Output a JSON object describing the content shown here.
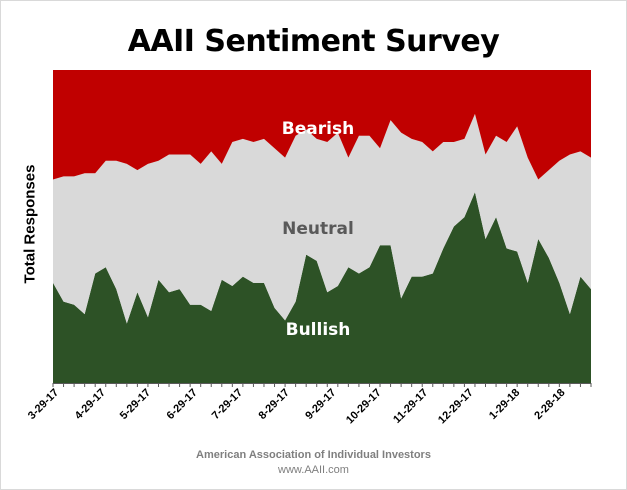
{
  "page": {
    "title": "AAII Sentiment Survey",
    "footer_org": "American Association of Individual Investors",
    "footer_url": "www.AAII.com"
  },
  "chart_data": {
    "type": "area",
    "stacked": true,
    "percent_stacked": true,
    "title": "AAII Sentiment Survey",
    "xlabel": "",
    "ylabel": "Total Responses",
    "ylim": [
      0,
      100
    ],
    "grid": false,
    "legend": "none",
    "x_tick_labels": [
      "3-29-17",
      "4-29-17",
      "5-29-17",
      "6-29-17",
      "7-29-17",
      "8-29-17",
      "9-29-17",
      "10-29-17",
      "11-29-17",
      "12-29-17",
      "1-29-18",
      "2-28-18"
    ],
    "x_tick_positions": [
      0,
      4.43,
      8.71,
      13.14,
      17.43,
      21.86,
      26.29,
      30.57,
      35.0,
      39.29,
      43.71,
      48.0
    ],
    "series": [
      {
        "name": "Bullish",
        "color": "#2d5226",
        "values": [
          32,
          26,
          25,
          22,
          35,
          37,
          30,
          19,
          29,
          21,
          33,
          29,
          30,
          25,
          25,
          23,
          33,
          31,
          34,
          32,
          32,
          24,
          20,
          26,
          41,
          39,
          29,
          31,
          37,
          35,
          37,
          44,
          44,
          27,
          34,
          34,
          35,
          43,
          50,
          53,
          61,
          46,
          53,
          43,
          42,
          32,
          46,
          40,
          32,
          22,
          34,
          30
        ]
      },
      {
        "name": "Neutral",
        "color": "#d9d9d9",
        "values": [
          33,
          40,
          41,
          45,
          32,
          34,
          41,
          51,
          39,
          49,
          38,
          44,
          43,
          48,
          45,
          51,
          37,
          46,
          44,
          45,
          46,
          51,
          52,
          53,
          40,
          39,
          48,
          49,
          35,
          44,
          42,
          31,
          40,
          53,
          44,
          43,
          39,
          34,
          27,
          25,
          25,
          27,
          26,
          34,
          40,
          40,
          19,
          28,
          39,
          51,
          40,
          42
        ]
      },
      {
        "name": "Bearish",
        "color": "#c00000",
        "values": [
          35,
          34,
          34,
          33,
          33,
          29,
          29,
          30,
          32,
          30,
          29,
          27,
          27,
          27,
          30,
          26,
          30,
          23,
          22,
          23,
          22,
          25,
          28,
          21,
          19,
          22,
          23,
          20,
          28,
          21,
          21,
          25,
          16,
          20,
          22,
          23,
          26,
          23,
          23,
          22,
          14,
          27,
          21,
          23,
          18,
          28,
          35,
          32,
          29,
          27,
          26,
          28
        ]
      }
    ],
    "area_labels": [
      "Bearish",
      "Neutral",
      "Bullish"
    ]
  }
}
